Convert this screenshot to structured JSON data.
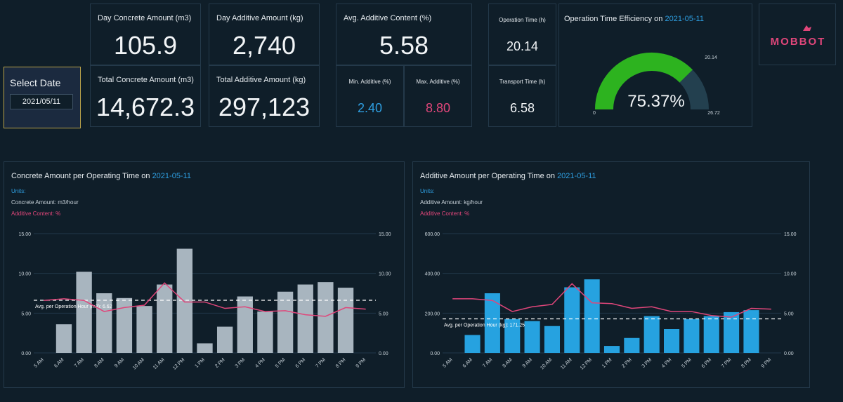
{
  "select_date": {
    "title": "Select Date",
    "value": "2021/05/11"
  },
  "kpis": {
    "day_concrete": {
      "label": "Day Concrete Amount (m3)",
      "value": "105.9"
    },
    "day_additive": {
      "label": "Day Additive Amount (kg)",
      "value": "2,740"
    },
    "avg_additive": {
      "label": "Avg. Additive Content (%)",
      "value": "5.58"
    },
    "total_concrete": {
      "label": "Total Concrete Amount (m3)",
      "value": "14,672.3"
    },
    "total_additive": {
      "label": "Total Additive Amount (kg)",
      "value": "297,123"
    },
    "min_additive": {
      "label": "Min. Additive (%)",
      "value": "2.40"
    },
    "max_additive": {
      "label": "Max. Additive (%)",
      "value": "8.80"
    },
    "operation_time": {
      "label": "Operation Time (h)",
      "value": "20.14"
    },
    "transport_time": {
      "label": "Transport Time (h)",
      "value": "6.58"
    }
  },
  "gauge": {
    "title_prefix": "Operation Time Efficiency on ",
    "title_date": "2021-05-11",
    "percent_label": "75.37%",
    "value": 20.14,
    "max": 26.72,
    "value_label": "20.14",
    "min_label": "0",
    "max_label": "26.72"
  },
  "logo": {
    "text": "MOBBOT"
  },
  "colors": {
    "accent": "#2e9ee0",
    "pink": "#e0467a",
    "gauge_green": "#2db31f",
    "gauge_track": "#23404f",
    "concrete_bar": "#a8b5bf",
    "additive_bar": "#26a2e0"
  },
  "chart_data": [
    {
      "type": "bar",
      "title_prefix": "Concrete Amount per Operating Time on ",
      "title_date": "2021-05-11",
      "units_header": "Units:",
      "unit_line_1": "Concrete Amount: m3/hour",
      "unit_line_2": "Additive Content: %",
      "categories": [
        "5 AM",
        "6 AM",
        "7 AM",
        "8 AM",
        "9 AM",
        "10 AM",
        "11 AM",
        "12 PM",
        "1 PM",
        "2 PM",
        "3 PM",
        "4 PM",
        "5 PM",
        "6 PM",
        "7 PM",
        "8 PM",
        "9 PM"
      ],
      "ylim_left": [
        0,
        15
      ],
      "yticks_left": [
        "0.00",
        "5.00",
        "10.00",
        "15.00"
      ],
      "ylim_right": [
        0,
        15
      ],
      "yticks_right": [
        "0.00",
        "5.00",
        "10.00",
        "15.00"
      ],
      "series": [
        {
          "name": "Concrete Amount",
          "kind": "bar",
          "axis": "left",
          "values": [
            null,
            3.6,
            10.2,
            7.5,
            6.9,
            5.9,
            8.6,
            13.1,
            1.2,
            3.3,
            7.1,
            5.2,
            7.7,
            8.6,
            8.9,
            8.2,
            null
          ]
        },
        {
          "name": "Additive Content",
          "kind": "line",
          "axis": "right",
          "values": [
            6.6,
            6.8,
            6.6,
            5.2,
            5.7,
            6.0,
            8.8,
            6.4,
            6.4,
            5.6,
            5.8,
            5.2,
            5.3,
            4.8,
            4.6,
            5.7,
            5.5
          ]
        }
      ],
      "average": {
        "label": "Avg. per Operation Hour (m3): 6.62",
        "value": 6.62,
        "axis": "left"
      },
      "grid": true
    },
    {
      "type": "bar",
      "title_prefix": "Additive Amount per Operating Time on ",
      "title_date": "2021-05-11",
      "units_header": "Units:",
      "unit_line_1": "Additive Amount: kg/hour",
      "unit_line_2": "Additive Content: %",
      "categories": [
        "5 AM",
        "6 AM",
        "7 AM",
        "8 AM",
        "9 AM",
        "10 AM",
        "11 AM",
        "12 PM",
        "1 PM",
        "2 PM",
        "3 PM",
        "4 PM",
        "5 PM",
        "6 PM",
        "7 PM",
        "8 PM",
        "9 PM"
      ],
      "ylim_left": [
        0,
        600
      ],
      "yticks_left": [
        "0.00",
        "200.00",
        "400.00",
        "600.00"
      ],
      "ylim_right": [
        0,
        15
      ],
      "yticks_right": [
        "0.00",
        "5.00",
        "10.00",
        "15.00"
      ],
      "series": [
        {
          "name": "Additive Amount",
          "kind": "bar",
          "axis": "left",
          "values": [
            null,
            90,
            300,
            170,
            160,
            135,
            330,
            370,
            35,
            75,
            185,
            120,
            170,
            185,
            205,
            215,
            null
          ]
        },
        {
          "name": "Additive Content",
          "kind": "line",
          "axis": "right",
          "values": [
            6.8,
            6.8,
            6.6,
            5.2,
            5.8,
            6.1,
            8.7,
            6.3,
            6.2,
            5.6,
            5.8,
            5.2,
            5.2,
            4.7,
            4.5,
            5.6,
            5.5
          ]
        }
      ],
      "average": {
        "label": "Avg. per Operation Hour (kg): 171.25",
        "value": 171.25,
        "axis": "left"
      },
      "grid": true
    }
  ]
}
